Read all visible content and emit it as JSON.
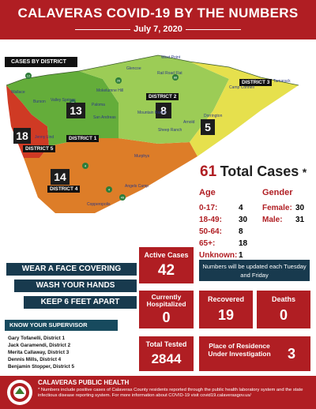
{
  "header": {
    "title": "CALAVERAS COVID-19 BY THE NUMBERS",
    "date": "July 7, 2020"
  },
  "map": {
    "legend_label": "CASES BY DISTRICT",
    "districts": [
      {
        "label": "DISTRICT 1",
        "count": "13"
      },
      {
        "label": "DISTRICT 2",
        "count": "8"
      },
      {
        "label": "DISTRICT 3",
        "count": "5"
      },
      {
        "label": "DISTRICT 4",
        "count": "14"
      },
      {
        "label": "DISTRICT 5",
        "count": "18"
      }
    ],
    "towns": [
      "West Point",
      "Glencoe",
      "Wallace",
      "Rail Road Flat",
      "Burson",
      "Valley Springs",
      "Mokelumne Hill",
      "Paloma",
      "San Andreas",
      "Mountain Ranch",
      "Sheep Ranch",
      "Arnold",
      "Dorrington",
      "Camp Connell",
      "Tamarack",
      "Murphys",
      "Jenny Lind",
      "Angels Camp",
      "Copperopolis"
    ],
    "route_numbers": [
      "88",
      "26",
      "12",
      "49",
      "4",
      "4",
      "49"
    ]
  },
  "total": {
    "number": "61",
    "label": "Total Cases",
    "star": "*"
  },
  "age": {
    "title": "Age",
    "rows": [
      {
        "label": "0-17:",
        "value": "4"
      },
      {
        "label": "18-49:",
        "value": "30"
      },
      {
        "label": "50-64:",
        "value": "8"
      },
      {
        "label": "65+:",
        "value": "18"
      },
      {
        "label": "Unknown:",
        "value": "1"
      }
    ]
  },
  "gender": {
    "title": "Gender",
    "rows": [
      {
        "label": "Female:",
        "value": "30"
      },
      {
        "label": "Male:",
        "value": "31"
      }
    ]
  },
  "guidance": [
    "WEAR A FACE COVERING",
    "WASH YOUR HANDS",
    "KEEP 6 FEET APART"
  ],
  "stats": {
    "active": {
      "label": "Active Cases",
      "value": "42"
    },
    "hospitalized": {
      "label": "Currently Hospitalized",
      "value": "0"
    },
    "recovered": {
      "label": "Recovered",
      "value": "19"
    },
    "deaths": {
      "label": "Deaths",
      "value": "0"
    },
    "tested": {
      "label": "Total Tested",
      "value": "2844"
    },
    "investigation": {
      "label": "Place of Residence Under Investigation",
      "value": "3"
    }
  },
  "note": "Numbers will be updated each Tuesday and Friday",
  "supervisors": {
    "title": "KNOW YOUR SUPERVISOR",
    "names": [
      "Gary Tofanelli, District 1",
      "Jack Garamendi, District 2",
      "Merita Callaway, District 3",
      "Dennis Mills, District 4",
      "Benjamin Stopper, District 5"
    ]
  },
  "footer": {
    "agency": "CALAVERAS PUBLIC HEALTH",
    "disclaimer": "* Numbers include positive cases of Calaveras County residents reported through the public health laboratory system and the state infectious disease reporting system. For more information about COVID-19 visit covid19.calaverasgov.us/"
  },
  "colors": {
    "brand_red": "#b01e23",
    "navy": "#183a4e",
    "d1": "#64ad3a",
    "d2": "#9ccc56",
    "d3": "#e6e04d",
    "d4": "#dd7d28",
    "d5": "#cf3a24"
  }
}
